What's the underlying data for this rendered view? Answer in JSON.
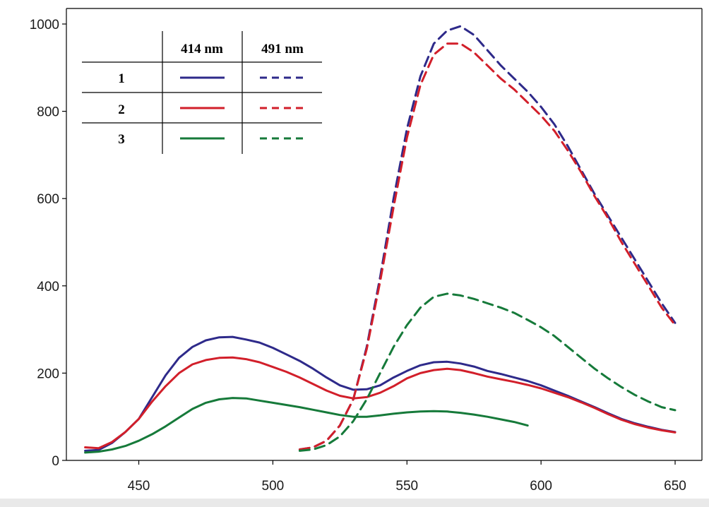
{
  "chart_data": {
    "type": "line",
    "title": "",
    "xlabel": "",
    "ylabel": "",
    "xlim": [
      423,
      660
    ],
    "ylim": [
      0,
      1000
    ],
    "grid": false,
    "legend_position": "top-left",
    "x_ticks": [
      {
        "value": 450,
        "label": "450"
      },
      {
        "value": 500,
        "label": "500"
      },
      {
        "value": 550,
        "label": "550"
      },
      {
        "value": 600,
        "label": "600"
      },
      {
        "value": 650,
        "label": "650"
      }
    ],
    "y_ticks": [
      {
        "value": 0,
        "label": "0"
      },
      {
        "value": 200,
        "label": "200"
      },
      {
        "value": 400,
        "label": "400"
      },
      {
        "value": 600,
        "label": "600"
      },
      {
        "value": 800,
        "label": "800"
      },
      {
        "value": 1000,
        "label": "1000"
      }
    ],
    "legend": {
      "headers": [
        "414 nm",
        "491 nm"
      ],
      "rows": [
        {
          "label": "1",
          "color": "#2e2a8a"
        },
        {
          "label": "2",
          "color": "#d21f2a"
        },
        {
          "label": "3",
          "color": "#167a3a"
        }
      ]
    },
    "series": [
      {
        "name": "1 (414 nm)",
        "legend_row": 0,
        "style": "solid",
        "color": "#2e2a8a",
        "points": [
          [
            430,
            22
          ],
          [
            435,
            24
          ],
          [
            440,
            40
          ],
          [
            445,
            65
          ],
          [
            450,
            95
          ],
          [
            455,
            145
          ],
          [
            460,
            195
          ],
          [
            465,
            235
          ],
          [
            470,
            260
          ],
          [
            475,
            275
          ],
          [
            480,
            282
          ],
          [
            485,
            283
          ],
          [
            490,
            277
          ],
          [
            495,
            270
          ],
          [
            500,
            258
          ],
          [
            505,
            243
          ],
          [
            510,
            228
          ],
          [
            515,
            210
          ],
          [
            520,
            190
          ],
          [
            525,
            172
          ],
          [
            530,
            162
          ],
          [
            535,
            163
          ],
          [
            540,
            172
          ],
          [
            545,
            190
          ],
          [
            550,
            205
          ],
          [
            555,
            218
          ],
          [
            560,
            225
          ],
          [
            565,
            226
          ],
          [
            570,
            222
          ],
          [
            575,
            215
          ],
          [
            580,
            205
          ],
          [
            585,
            198
          ],
          [
            590,
            190
          ],
          [
            595,
            182
          ],
          [
            600,
            172
          ],
          [
            605,
            160
          ],
          [
            610,
            148
          ],
          [
            615,
            135
          ],
          [
            620,
            122
          ],
          [
            625,
            108
          ],
          [
            630,
            95
          ],
          [
            635,
            85
          ],
          [
            640,
            77
          ],
          [
            645,
            70
          ],
          [
            650,
            65
          ]
        ]
      },
      {
        "name": "2 (414 nm)",
        "legend_row": 1,
        "style": "solid",
        "color": "#d21f2a",
        "points": [
          [
            430,
            30
          ],
          [
            435,
            28
          ],
          [
            440,
            42
          ],
          [
            445,
            65
          ],
          [
            450,
            95
          ],
          [
            455,
            135
          ],
          [
            460,
            170
          ],
          [
            465,
            200
          ],
          [
            470,
            220
          ],
          [
            475,
            230
          ],
          [
            480,
            235
          ],
          [
            485,
            236
          ],
          [
            490,
            232
          ],
          [
            495,
            225
          ],
          [
            500,
            214
          ],
          [
            505,
            203
          ],
          [
            510,
            190
          ],
          [
            515,
            175
          ],
          [
            520,
            160
          ],
          [
            525,
            148
          ],
          [
            530,
            142
          ],
          [
            535,
            145
          ],
          [
            540,
            155
          ],
          [
            545,
            170
          ],
          [
            550,
            188
          ],
          [
            555,
            200
          ],
          [
            560,
            207
          ],
          [
            565,
            210
          ],
          [
            570,
            207
          ],
          [
            575,
            200
          ],
          [
            580,
            192
          ],
          [
            585,
            186
          ],
          [
            590,
            180
          ],
          [
            595,
            173
          ],
          [
            600,
            165
          ],
          [
            605,
            155
          ],
          [
            610,
            145
          ],
          [
            615,
            133
          ],
          [
            620,
            120
          ],
          [
            625,
            106
          ],
          [
            630,
            93
          ],
          [
            635,
            83
          ],
          [
            640,
            75
          ],
          [
            645,
            69
          ],
          [
            650,
            64
          ]
        ]
      },
      {
        "name": "3 (414 nm)",
        "legend_row": 2,
        "style": "solid",
        "color": "#167a3a",
        "points": [
          [
            430,
            18
          ],
          [
            435,
            20
          ],
          [
            440,
            25
          ],
          [
            445,
            33
          ],
          [
            450,
            45
          ],
          [
            455,
            60
          ],
          [
            460,
            78
          ],
          [
            465,
            98
          ],
          [
            470,
            118
          ],
          [
            475,
            132
          ],
          [
            480,
            140
          ],
          [
            485,
            143
          ],
          [
            490,
            142
          ],
          [
            495,
            137
          ],
          [
            500,
            132
          ],
          [
            505,
            127
          ],
          [
            510,
            122
          ],
          [
            515,
            116
          ],
          [
            520,
            110
          ],
          [
            525,
            104
          ],
          [
            530,
            100
          ],
          [
            535,
            100
          ],
          [
            540,
            103
          ],
          [
            545,
            107
          ],
          [
            550,
            110
          ],
          [
            555,
            112
          ],
          [
            560,
            113
          ],
          [
            565,
            112
          ],
          [
            570,
            109
          ],
          [
            575,
            105
          ],
          [
            580,
            100
          ],
          [
            585,
            94
          ],
          [
            590,
            88
          ],
          [
            595,
            80
          ]
        ]
      },
      {
        "name": "1 (491 nm)",
        "legend_row": 0,
        "style": "dashed",
        "color": "#2e2a8a",
        "points": [
          [
            510,
            25
          ],
          [
            515,
            30
          ],
          [
            520,
            45
          ],
          [
            525,
            80
          ],
          [
            530,
            140
          ],
          [
            535,
            260
          ],
          [
            540,
            420
          ],
          [
            545,
            600
          ],
          [
            550,
            760
          ],
          [
            555,
            880
          ],
          [
            560,
            955
          ],
          [
            565,
            985
          ],
          [
            570,
            995
          ],
          [
            575,
            975
          ],
          [
            580,
            940
          ],
          [
            585,
            905
          ],
          [
            590,
            875
          ],
          [
            595,
            845
          ],
          [
            600,
            810
          ],
          [
            605,
            770
          ],
          [
            610,
            720
          ],
          [
            615,
            665
          ],
          [
            620,
            610
          ],
          [
            625,
            560
          ],
          [
            630,
            510
          ],
          [
            635,
            460
          ],
          [
            640,
            410
          ],
          [
            645,
            360
          ],
          [
            650,
            315
          ]
        ]
      },
      {
        "name": "2 (491 nm)",
        "legend_row": 1,
        "style": "dashed",
        "color": "#d21f2a",
        "points": [
          [
            510,
            25
          ],
          [
            515,
            30
          ],
          [
            520,
            45
          ],
          [
            525,
            80
          ],
          [
            530,
            140
          ],
          [
            535,
            255
          ],
          [
            540,
            410
          ],
          [
            545,
            580
          ],
          [
            550,
            740
          ],
          [
            555,
            860
          ],
          [
            560,
            930
          ],
          [
            565,
            955
          ],
          [
            570,
            955
          ],
          [
            575,
            935
          ],
          [
            580,
            905
          ],
          [
            585,
            875
          ],
          [
            590,
            850
          ],
          [
            595,
            820
          ],
          [
            600,
            790
          ],
          [
            605,
            755
          ],
          [
            610,
            710
          ],
          [
            615,
            660
          ],
          [
            620,
            605
          ],
          [
            625,
            555
          ],
          [
            630,
            500
          ],
          [
            635,
            450
          ],
          [
            640,
            400
          ],
          [
            645,
            350
          ],
          [
            650,
            310
          ]
        ]
      },
      {
        "name": "3 (491 nm)",
        "legend_row": 2,
        "style": "dashed",
        "color": "#167a3a",
        "points": [
          [
            510,
            22
          ],
          [
            515,
            25
          ],
          [
            520,
            35
          ],
          [
            525,
            55
          ],
          [
            530,
            90
          ],
          [
            535,
            140
          ],
          [
            540,
            200
          ],
          [
            545,
            260
          ],
          [
            550,
            310
          ],
          [
            555,
            350
          ],
          [
            560,
            375
          ],
          [
            565,
            382
          ],
          [
            570,
            378
          ],
          [
            575,
            370
          ],
          [
            580,
            360
          ],
          [
            585,
            350
          ],
          [
            590,
            338
          ],
          [
            595,
            322
          ],
          [
            600,
            305
          ],
          [
            605,
            285
          ],
          [
            610,
            260
          ],
          [
            615,
            235
          ],
          [
            620,
            210
          ],
          [
            625,
            188
          ],
          [
            630,
            168
          ],
          [
            635,
            150
          ],
          [
            640,
            135
          ],
          [
            645,
            122
          ],
          [
            650,
            115
          ]
        ]
      }
    ]
  }
}
